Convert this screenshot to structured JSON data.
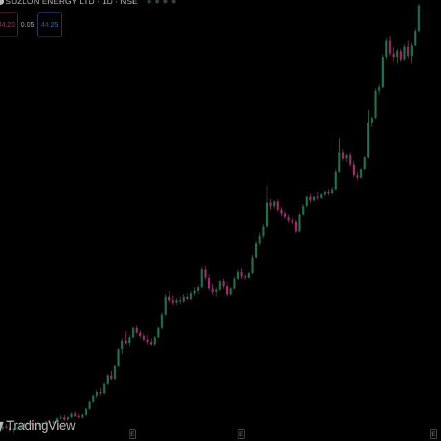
{
  "header": {
    "title": "SUZLON ENERGY LTD · 1D · NSE"
  },
  "trade": {
    "sell_price": "44.20",
    "spread": "0.05",
    "buy_price": "44.25"
  },
  "brand": {
    "name": "TradingView"
  },
  "events": {
    "marker_1": "E",
    "marker_2": "E",
    "marker_3": "E"
  },
  "colors": {
    "up": "#1f6e4a",
    "down": "#9c2a6a",
    "background": "#000000"
  },
  "chart_data": {
    "type": "candlestick",
    "title": "SUZLON ENERGY LTD · 1D · NSE",
    "y_axis_visible": false,
    "x_axis_visible": false,
    "ylim": [
      9,
      46
    ],
    "series": [
      {
        "name": "SUZLON ENERGY LTD",
        "candles": [
          [
            10.0,
            10.3,
            9.9,
            10.2
          ],
          [
            10.2,
            10.4,
            10.0,
            10.1
          ],
          [
            10.1,
            10.2,
            9.8,
            9.9
          ],
          [
            9.9,
            10.1,
            9.7,
            10.0
          ],
          [
            10.0,
            10.2,
            9.9,
            10.1
          ],
          [
            10.1,
            10.3,
            10.0,
            10.2
          ],
          [
            10.2,
            10.5,
            10.1,
            10.4
          ],
          [
            10.4,
            10.6,
            10.3,
            10.5
          ],
          [
            10.5,
            10.6,
            10.3,
            10.4
          ],
          [
            10.4,
            10.5,
            10.2,
            10.3
          ],
          [
            10.3,
            10.5,
            10.2,
            10.4
          ],
          [
            10.4,
            10.6,
            10.3,
            10.5
          ],
          [
            10.5,
            10.7,
            10.4,
            10.6
          ],
          [
            10.6,
            10.8,
            10.4,
            10.5
          ],
          [
            10.5,
            10.7,
            10.4,
            10.6
          ],
          [
            10.6,
            11.0,
            10.5,
            10.9
          ],
          [
            10.9,
            11.2,
            10.8,
            11.0
          ],
          [
            11.0,
            11.2,
            10.7,
            10.8
          ],
          [
            10.8,
            11.1,
            10.7,
            11.0
          ],
          [
            11.0,
            11.4,
            10.9,
            11.3
          ],
          [
            11.3,
            11.5,
            11.0,
            11.1
          ],
          [
            11.1,
            11.3,
            10.9,
            11.0
          ],
          [
            11.0,
            11.3,
            10.9,
            11.2
          ],
          [
            11.2,
            11.8,
            11.1,
            11.7
          ],
          [
            11.7,
            12.4,
            11.6,
            12.3
          ],
          [
            12.3,
            12.9,
            12.2,
            12.8
          ],
          [
            12.8,
            13.3,
            12.6,
            13.1
          ],
          [
            13.1,
            13.5,
            12.8,
            13.0
          ],
          [
            13.0,
            13.9,
            12.9,
            13.8
          ],
          [
            13.8,
            14.6,
            13.7,
            14.5
          ],
          [
            14.5,
            14.9,
            14.1,
            14.2
          ],
          [
            14.2,
            15.4,
            14.1,
            15.3
          ],
          [
            15.3,
            16.8,
            15.2,
            16.7
          ],
          [
            16.7,
            17.6,
            16.3,
            17.4
          ],
          [
            17.4,
            18.2,
            17.1,
            17.2
          ],
          [
            17.2,
            17.9,
            16.9,
            17.7
          ],
          [
            17.7,
            18.6,
            17.6,
            18.5
          ],
          [
            18.5,
            18.7,
            18.0,
            18.1
          ],
          [
            18.1,
            18.3,
            17.6,
            17.8
          ],
          [
            17.8,
            18.0,
            17.4,
            17.5
          ],
          [
            17.5,
            17.9,
            17.1,
            17.3
          ],
          [
            17.3,
            17.6,
            17.0,
            17.1
          ],
          [
            17.1,
            17.8,
            17.0,
            17.7
          ],
          [
            17.7,
            18.6,
            17.6,
            18.5
          ],
          [
            18.5,
            19.8,
            18.4,
            19.6
          ],
          [
            19.6,
            21.3,
            19.5,
            21.1
          ],
          [
            21.1,
            21.6,
            20.6,
            20.8
          ],
          [
            20.8,
            21.2,
            20.4,
            20.6
          ],
          [
            20.6,
            21.0,
            20.4,
            20.8
          ],
          [
            20.8,
            21.1,
            20.5,
            20.7
          ],
          [
            20.7,
            21.3,
            20.6,
            21.1
          ],
          [
            21.1,
            21.4,
            20.8,
            20.9
          ],
          [
            20.9,
            21.6,
            20.8,
            21.4
          ],
          [
            21.4,
            21.9,
            21.2,
            21.6
          ],
          [
            21.6,
            22.1,
            21.3,
            21.9
          ],
          [
            21.9,
            23.6,
            21.8,
            23.4
          ],
          [
            23.4,
            23.7,
            22.5,
            22.7
          ],
          [
            22.7,
            23.0,
            21.6,
            21.8
          ],
          [
            21.8,
            22.2,
            21.3,
            21.5
          ],
          [
            21.5,
            21.9,
            21.1,
            21.7
          ],
          [
            21.7,
            22.5,
            21.6,
            22.4
          ],
          [
            22.4,
            22.6,
            21.8,
            22.0
          ],
          [
            22.0,
            22.3,
            21.1,
            21.3
          ],
          [
            21.3,
            21.9,
            21.2,
            21.8
          ],
          [
            21.8,
            22.8,
            21.7,
            22.6
          ],
          [
            22.6,
            23.4,
            22.5,
            23.2
          ],
          [
            23.2,
            23.5,
            22.6,
            22.8
          ],
          [
            22.8,
            23.0,
            22.5,
            22.7
          ],
          [
            22.7,
            23.2,
            22.6,
            23.1
          ],
          [
            23.1,
            24.6,
            23.0,
            24.4
          ],
          [
            24.4,
            25.8,
            24.3,
            25.6
          ],
          [
            25.6,
            26.5,
            25.4,
            26.2
          ],
          [
            26.2,
            27.2,
            26.0,
            27.0
          ],
          [
            27.0,
            30.4,
            26.9,
            29.0
          ],
          [
            29.0,
            29.3,
            28.4,
            28.7
          ],
          [
            28.7,
            29.2,
            28.5,
            29.1
          ],
          [
            29.1,
            29.3,
            28.2,
            28.4
          ],
          [
            28.4,
            28.6,
            27.9,
            28.1
          ],
          [
            28.1,
            28.3,
            27.6,
            27.8
          ],
          [
            27.8,
            28.0,
            27.3,
            27.5
          ],
          [
            27.5,
            27.7,
            27.2,
            27.4
          ],
          [
            27.4,
            27.6,
            26.4,
            26.6
          ],
          [
            26.6,
            28.1,
            26.5,
            28.0
          ],
          [
            28.0,
            28.9,
            27.9,
            28.7
          ],
          [
            28.7,
            29.6,
            28.6,
            29.5
          ],
          [
            29.5,
            29.7,
            29.0,
            29.2
          ],
          [
            29.2,
            29.6,
            29.1,
            29.5
          ],
          [
            29.5,
            29.9,
            29.2,
            29.4
          ],
          [
            29.4,
            29.8,
            29.3,
            29.7
          ],
          [
            29.7,
            30.0,
            29.5,
            29.9
          ],
          [
            29.9,
            30.1,
            29.6,
            29.8
          ],
          [
            29.8,
            30.3,
            29.7,
            30.1
          ],
          [
            30.1,
            31.8,
            30.0,
            31.6
          ],
          [
            31.6,
            34.4,
            31.5,
            33.2
          ],
          [
            33.2,
            33.5,
            32.5,
            32.7
          ],
          [
            32.7,
            33.1,
            32.4,
            33.0
          ],
          [
            33.0,
            33.2,
            32.0,
            32.2
          ],
          [
            32.2,
            32.5,
            31.1,
            31.3
          ],
          [
            31.3,
            31.6,
            30.9,
            31.1
          ],
          [
            31.1,
            31.9,
            31.0,
            31.8
          ],
          [
            31.8,
            32.9,
            31.7,
            32.8
          ],
          [
            32.8,
            36.8,
            32.7,
            35.7
          ],
          [
            35.7,
            36.2,
            35.4,
            36.1
          ],
          [
            36.1,
            38.6,
            36.0,
            38.4
          ],
          [
            38.4,
            38.9,
            38.1,
            38.7
          ],
          [
            38.7,
            41.4,
            38.6,
            41.2
          ],
          [
            41.2,
            42.8,
            41.0,
            42.6
          ],
          [
            42.6,
            43.0,
            41.3,
            41.5
          ],
          [
            41.5,
            42.1,
            40.8,
            41.2
          ],
          [
            41.2,
            41.9,
            40.7,
            41.7
          ],
          [
            41.7,
            41.9,
            40.8,
            41.0
          ],
          [
            41.0,
            42.3,
            40.9,
            42.1
          ],
          [
            42.1,
            42.6,
            41.1,
            41.3
          ],
          [
            41.3,
            42.4,
            40.7,
            42.2
          ],
          [
            42.2,
            43.6,
            42.1,
            43.4
          ],
          [
            43.4,
            45.7,
            43.3,
            45.5
          ]
        ]
      }
    ]
  }
}
